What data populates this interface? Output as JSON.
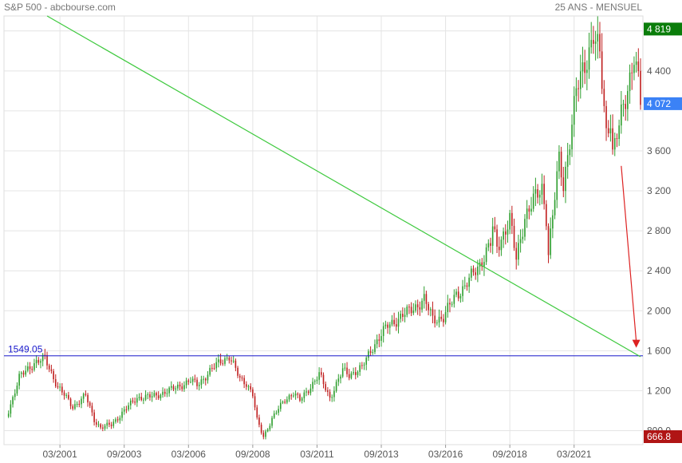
{
  "header": {
    "title_left": "S&P 500 - abcbourse.com",
    "title_right": "25 ANS - MENSUEL"
  },
  "chart_data": {
    "type": "candlestick",
    "title": "S&P 500 - abcbourse.com",
    "subtitle": "25 ANS - MENSUEL",
    "ylim": [
      660,
      4950
    ],
    "xlim": [
      "1999-02",
      "2023-10"
    ],
    "y_ticks": [
      800,
      1200,
      1600,
      2000,
      2400,
      2800,
      3200,
      3600,
      4000,
      4400,
      4800
    ],
    "y_tick_labels": [
      "800.0",
      "1 200",
      "1 600",
      "2 000",
      "2 400",
      "2 800",
      "3 200",
      "3 600",
      "",
      "4 400",
      ""
    ],
    "x_ticks": [
      "03/2001",
      "09/2003",
      "03/2006",
      "09/2008",
      "03/2011",
      "09/2013",
      "03/2016",
      "09/2018",
      "03/2021"
    ],
    "grid": true,
    "colors": {
      "up": "#2e9e2e",
      "down": "#c02020",
      "grid": "#e4e4e4"
    },
    "price_tags": [
      {
        "label": "4 819",
        "value": 4819,
        "color": "#0a7d0a"
      },
      {
        "label": "4 072",
        "value": 4072,
        "color": "#3b82f6"
      },
      {
        "label": "666.8",
        "value": 666.8,
        "color": "#b01515"
      }
    ],
    "horizontal_line": {
      "label": "1549.05",
      "value": 1549.05,
      "color": "#1a1acc"
    },
    "trend_line": {
      "start": {
        "x": "2000-09",
        "y": 4950
      },
      "end": {
        "x": "2023-10",
        "y": 1540
      },
      "color": "#3ec93e"
    },
    "arrow": {
      "start": {
        "x": "2023-01",
        "y": 3450
      },
      "end": {
        "x": "2023-08",
        "y": 1630
      },
      "color": "#dd2222"
    },
    "anchor_points": [
      [
        "1999-03",
        1000
      ],
      [
        "1999-08",
        1330
      ],
      [
        "2000-03",
        1480
      ],
      [
        "2000-08",
        1520
      ],
      [
        "2001-02",
        1240
      ],
      [
        "2001-09",
        1040
      ],
      [
        "2002-03",
        1150
      ],
      [
        "2002-07",
        910
      ],
      [
        "2002-10",
        830
      ],
      [
        "2003-03",
        860
      ],
      [
        "2003-09",
        1000
      ],
      [
        "2004-03",
        1130
      ],
      [
        "2004-10",
        1140
      ],
      [
        "2005-06",
        1200
      ],
      [
        "2006-04",
        1300
      ],
      [
        "2006-07",
        1260
      ],
      [
        "2007-06",
        1500
      ],
      [
        "2007-10",
        1540
      ],
      [
        "2008-03",
        1320
      ],
      [
        "2008-06",
        1280
      ],
      [
        "2008-09",
        1160
      ],
      [
        "2008-11",
        900
      ],
      [
        "2009-02",
        740
      ],
      [
        "2009-06",
        920
      ],
      [
        "2009-12",
        1110
      ],
      [
        "2010-04",
        1180
      ],
      [
        "2010-07",
        1100
      ],
      [
        "2011-04",
        1360
      ],
      [
        "2011-09",
        1130
      ],
      [
        "2012-03",
        1400
      ],
      [
        "2012-06",
        1360
      ],
      [
        "2012-12",
        1430
      ],
      [
        "2013-05",
        1640
      ],
      [
        "2013-12",
        1850
      ],
      [
        "2014-09",
        1980
      ],
      [
        "2015-05",
        2110
      ],
      [
        "2015-09",
        1920
      ],
      [
        "2016-02",
        1930
      ],
      [
        "2016-08",
        2170
      ],
      [
        "2016-12",
        2240
      ],
      [
        "2017-07",
        2470
      ],
      [
        "2017-12",
        2670
      ],
      [
        "2018-01",
        2820
      ],
      [
        "2018-03",
        2640
      ],
      [
        "2018-09",
        2910
      ],
      [
        "2018-12",
        2510
      ],
      [
        "2019-04",
        2950
      ],
      [
        "2019-12",
        3230
      ],
      [
        "2020-02",
        2950
      ],
      [
        "2020-03",
        2580
      ],
      [
        "2020-08",
        3500
      ],
      [
        "2020-10",
        3270
      ],
      [
        "2021-04",
        4180
      ],
      [
        "2021-12",
        4766
      ],
      [
        "2022-03",
        4530
      ],
      [
        "2022-06",
        3780
      ],
      [
        "2022-08",
        3950
      ],
      [
        "2022-09",
        3590
      ],
      [
        "2022-12",
        3840
      ],
      [
        "2023-03",
        4110
      ],
      [
        "2023-07",
        4588
      ],
      [
        "2023-09",
        4290
      ],
      [
        "2023-10",
        4072
      ]
    ]
  }
}
